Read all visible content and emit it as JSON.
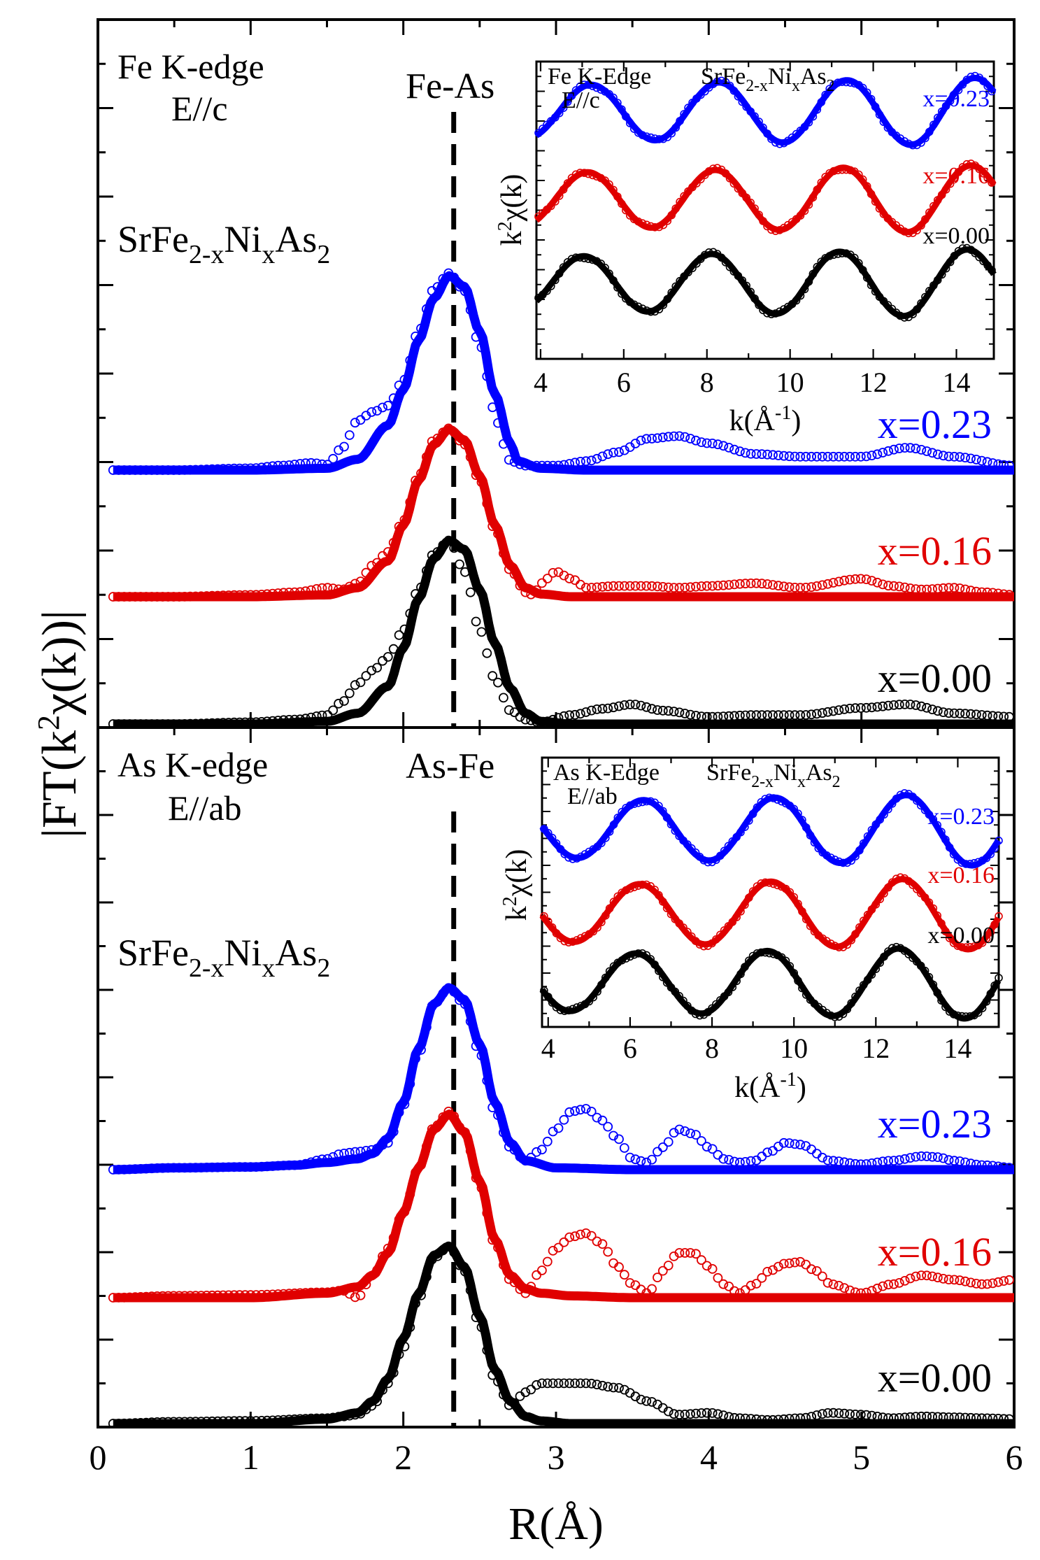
{
  "figure": {
    "ylabel": "|FT(k²χ(k))|",
    "ylabel_main": "|FT(k",
    "ylabel_sup": "2",
    "ylabel_rest": "χ(k))|",
    "xlabel": "R(Å)"
  },
  "colors": {
    "x023": "#0000ff",
    "x016": "#e00000",
    "x000": "#000000"
  },
  "chart_data": [
    {
      "id": "fe_main",
      "type": "line",
      "title_line1": "Fe K-edge",
      "title_line2": "E//c",
      "bond_label": "Fe-As",
      "bond_R": 2.33,
      "compound": "SrFe2-xNixAs2",
      "xlabel": "R(Å)",
      "ylabel": "|FT(k²χ(k))|",
      "xlim": [
        0,
        6
      ],
      "x_ticks": [
        0,
        1,
        2,
        3,
        4,
        5,
        6
      ],
      "series": [
        {
          "name": "x=0.23",
          "offset": 2.0,
          "fit": {
            "x": [
              0.1,
              1.0,
              1.5,
              1.7,
              1.9,
              2.0,
              2.1,
              2.2,
              2.3,
              2.4,
              2.5,
              2.6,
              2.7,
              2.75,
              2.9,
              3.2,
              4.0,
              5.0,
              6.0
            ],
            "y": [
              0.0,
              0.0,
              0.02,
              0.12,
              0.5,
              0.9,
              1.45,
              1.92,
              2.17,
              2.05,
              1.55,
              0.85,
              0.3,
              0.1,
              0.02,
              0.0,
              0.0,
              0.0,
              0.0
            ]
          },
          "data": {
            "x": [
              0.1,
              0.5,
              1.0,
              1.2,
              1.4,
              1.5,
              1.6,
              1.7,
              1.8,
              1.9,
              2.0,
              2.1,
              2.2,
              2.3,
              2.4,
              2.5,
              2.6,
              2.65,
              2.7,
              2.8,
              3.0,
              3.2,
              3.4,
              3.6,
              3.8,
              4.0,
              4.3,
              4.6,
              5.0,
              5.3,
              5.6,
              6.0
            ],
            "y": [
              0.0,
              0.0,
              0.02,
              0.05,
              0.08,
              0.06,
              0.25,
              0.55,
              0.65,
              0.72,
              1.0,
              1.55,
              2.02,
              2.2,
              2.0,
              1.4,
              0.65,
              0.3,
              0.1,
              0.05,
              0.05,
              0.1,
              0.2,
              0.35,
              0.38,
              0.3,
              0.18,
              0.15,
              0.15,
              0.25,
              0.15,
              0.05
            ]
          }
        },
        {
          "name": "x=0.16",
          "offset": 1.0,
          "fit": {
            "x": [
              0.1,
              1.0,
              1.5,
              1.7,
              1.9,
              2.0,
              2.1,
              2.2,
              2.3,
              2.4,
              2.5,
              2.6,
              2.7,
              2.8,
              2.9,
              3.1,
              4.0,
              5.0,
              6.0
            ],
            "y": [
              0.0,
              0.0,
              0.02,
              0.1,
              0.4,
              0.8,
              1.3,
              1.7,
              1.87,
              1.75,
              1.35,
              0.8,
              0.35,
              0.1,
              0.03,
              0.0,
              0.0,
              0.0,
              0.0
            ]
          },
          "data": {
            "x": [
              0.1,
              0.5,
              1.0,
              1.3,
              1.5,
              1.6,
              1.7,
              1.8,
              1.9,
              2.0,
              2.1,
              2.2,
              2.3,
              2.4,
              2.5,
              2.6,
              2.7,
              2.8,
              2.85,
              2.9,
              3.0,
              3.1,
              3.2,
              3.4,
              3.6,
              3.8,
              4.0,
              4.3,
              4.6,
              5.0,
              5.2,
              5.4,
              5.6,
              5.8,
              6.0
            ],
            "y": [
              0.0,
              0.0,
              0.02,
              0.05,
              0.1,
              0.08,
              0.15,
              0.35,
              0.5,
              0.85,
              1.35,
              1.75,
              1.88,
              1.7,
              1.3,
              0.75,
              0.3,
              0.05,
              0.02,
              0.15,
              0.28,
              0.2,
              0.1,
              0.12,
              0.12,
              0.1,
              0.12,
              0.15,
              0.1,
              0.2,
              0.12,
              0.08,
              0.1,
              0.05,
              0.02
            ]
          }
        },
        {
          "name": "x=0.00",
          "offset": 0.0,
          "fit": {
            "x": [
              0.1,
              1.0,
              1.5,
              1.7,
              1.9,
              2.0,
              2.1,
              2.2,
              2.3,
              2.4,
              2.5,
              2.6,
              2.7,
              2.8,
              2.9,
              3.1,
              4.0,
              5.0,
              6.0
            ],
            "y": [
              0.0,
              0.0,
              0.03,
              0.12,
              0.42,
              0.85,
              1.4,
              1.85,
              2.05,
              1.95,
              1.5,
              0.9,
              0.4,
              0.12,
              0.03,
              0.0,
              0.0,
              0.0,
              0.0
            ]
          },
          "data": {
            "x": [
              0.1,
              0.5,
              1.0,
              1.3,
              1.5,
              1.6,
              1.7,
              1.8,
              1.9,
              2.0,
              2.1,
              2.2,
              2.3,
              2.4,
              2.5,
              2.6,
              2.7,
              2.8,
              2.9,
              3.1,
              3.3,
              3.5,
              3.7,
              4.0,
              4.3,
              4.6,
              5.0,
              5.3,
              5.6,
              6.0
            ],
            "y": [
              0.0,
              0.0,
              0.02,
              0.05,
              0.1,
              0.25,
              0.45,
              0.6,
              0.75,
              1.05,
              1.5,
              1.9,
              2.05,
              1.7,
              1.05,
              0.5,
              0.15,
              0.05,
              0.02,
              0.1,
              0.17,
              0.22,
              0.15,
              0.08,
              0.1,
              0.1,
              0.18,
              0.22,
              0.12,
              0.08
            ]
          }
        }
      ]
    },
    {
      "id": "fe_inset",
      "type": "line",
      "title_line1": "Fe K-Edge",
      "title_line2": "E//c",
      "compound": "SrFe2-xNixAs2",
      "xlabel": "k(Å⁻¹)",
      "ylabel": "k²χ(k)",
      "xlim": [
        3.9,
        14.9
      ],
      "x_ticks": [
        4,
        6,
        8,
        10,
        12,
        14
      ],
      "wave": {
        "k": 4.3,
        "phase": 3.5
      },
      "series": [
        {
          "name": "x=0.23",
          "offset": 2.0
        },
        {
          "name": "x=0.16",
          "offset": 1.0
        },
        {
          "name": "x=0.00",
          "offset": 0.0
        }
      ]
    },
    {
      "id": "as_main",
      "type": "line",
      "title_line1": "As K-edge",
      "title_line2": "E//ab",
      "bond_label": "As-Fe",
      "bond_R": 2.33,
      "compound": "SrFe2-xNixAs2",
      "xlabel": "R(Å)",
      "ylabel": "|FT(k²χ(k))|",
      "xlim": [
        0,
        6
      ],
      "x_ticks": [
        0,
        1,
        2,
        3,
        4,
        5,
        6
      ],
      "series": [
        {
          "name": "x=0.23",
          "offset": 2.0,
          "fit": {
            "x": [
              0.1,
              0.5,
              1.0,
              1.3,
              1.5,
              1.7,
              1.8,
              1.9,
              2.0,
              2.1,
              2.2,
              2.3,
              2.4,
              2.5,
              2.6,
              2.7,
              2.8,
              3.0,
              3.5,
              6.0
            ],
            "y": [
              0.0,
              0.02,
              0.03,
              0.05,
              0.08,
              0.12,
              0.18,
              0.35,
              0.75,
              1.35,
              1.85,
              2.03,
              1.9,
              1.4,
              0.75,
              0.3,
              0.1,
              0.02,
              0.0,
              0.0
            ]
          },
          "data": {
            "x": [
              0.1,
              0.5,
              1.0,
              1.3,
              1.5,
              1.6,
              1.7,
              1.8,
              1.9,
              2.0,
              2.1,
              2.2,
              2.3,
              2.4,
              2.5,
              2.6,
              2.7,
              2.8,
              2.9,
              3.0,
              3.1,
              3.2,
              3.3,
              3.4,
              3.5,
              3.6,
              3.7,
              3.8,
              3.9,
              4.0,
              4.1,
              4.2,
              4.3,
              4.4,
              4.5,
              4.6,
              4.8,
              5.0,
              5.2,
              5.4,
              5.5,
              5.6,
              5.8,
              6.0
            ],
            "y": [
              0.0,
              0.02,
              0.03,
              0.05,
              0.12,
              0.18,
              0.2,
              0.22,
              0.3,
              0.72,
              1.3,
              1.85,
              2.03,
              1.85,
              1.3,
              0.65,
              0.25,
              0.1,
              0.22,
              0.45,
              0.65,
              0.68,
              0.55,
              0.35,
              0.12,
              0.08,
              0.25,
              0.45,
              0.4,
              0.25,
              0.12,
              0.08,
              0.1,
              0.2,
              0.3,
              0.28,
              0.1,
              0.06,
              0.1,
              0.15,
              0.14,
              0.1,
              0.05,
              0.02
            ]
          }
        },
        {
          "name": "x=0.16",
          "offset": 1.0,
          "fit": {
            "x": [
              0.1,
              1.0,
              1.5,
              1.7,
              1.8,
              1.9,
              2.0,
              2.1,
              2.2,
              2.3,
              2.4,
              2.5,
              2.6,
              2.7,
              2.8,
              2.9,
              3.1,
              3.5,
              6.0
            ],
            "y": [
              0.0,
              0.0,
              0.05,
              0.12,
              0.25,
              0.5,
              0.95,
              1.45,
              1.88,
              2.05,
              1.85,
              1.3,
              0.65,
              0.25,
              0.1,
              0.05,
              0.02,
              0.0,
              0.0
            ]
          },
          "data": {
            "x": [
              0.1,
              0.5,
              1.0,
              1.5,
              1.6,
              1.7,
              1.8,
              1.9,
              2.0,
              2.1,
              2.2,
              2.3,
              2.4,
              2.5,
              2.6,
              2.7,
              2.8,
              2.9,
              3.0,
              3.1,
              3.2,
              3.3,
              3.4,
              3.5,
              3.6,
              3.7,
              3.8,
              3.9,
              4.0,
              4.1,
              4.2,
              4.3,
              4.4,
              4.5,
              4.6,
              4.7,
              4.8,
              5.0,
              5.2,
              5.4,
              5.6,
              5.8,
              6.0
            ],
            "y": [
              0.0,
              0.02,
              0.03,
              0.06,
              0.08,
              0.0,
              0.25,
              0.55,
              0.95,
              1.45,
              1.9,
              2.08,
              1.85,
              1.25,
              0.6,
              0.2,
              0.05,
              0.3,
              0.55,
              0.68,
              0.72,
              0.6,
              0.35,
              0.15,
              0.05,
              0.3,
              0.5,
              0.5,
              0.35,
              0.15,
              0.05,
              0.15,
              0.3,
              0.38,
              0.4,
              0.3,
              0.15,
              0.05,
              0.15,
              0.25,
              0.2,
              0.15,
              0.2
            ]
          }
        },
        {
          "name": "x=0.00",
          "offset": 0.0,
          "fit": {
            "x": [
              0.1,
              1.0,
              1.5,
              1.7,
              1.8,
              1.9,
              2.0,
              2.1,
              2.2,
              2.3,
              2.4,
              2.5,
              2.6,
              2.7,
              2.8,
              2.9,
              3.1,
              3.5,
              6.0
            ],
            "y": [
              0.0,
              0.0,
              0.05,
              0.12,
              0.25,
              0.5,
              0.95,
              1.45,
              1.88,
              1.98,
              1.75,
              1.2,
              0.6,
              0.25,
              0.08,
              0.03,
              0.0,
              0.0,
              0.0
            ]
          },
          "data": {
            "x": [
              0.1,
              0.5,
              1.0,
              1.5,
              1.6,
              1.7,
              1.8,
              1.9,
              2.0,
              2.1,
              2.2,
              2.3,
              2.4,
              2.5,
              2.6,
              2.7,
              2.8,
              2.9,
              3.0,
              3.2,
              3.4,
              3.6,
              3.8,
              4.0,
              4.2,
              4.4,
              4.6,
              4.8,
              5.0,
              5.2,
              5.4,
              5.6,
              5.8,
              6.0
            ],
            "y": [
              0.0,
              0.02,
              0.03,
              0.06,
              0.08,
              0.1,
              0.2,
              0.45,
              0.85,
              1.4,
              1.85,
              1.98,
              1.7,
              1.1,
              0.5,
              0.2,
              0.35,
              0.45,
              0.45,
              0.45,
              0.4,
              0.25,
              0.1,
              0.12,
              0.06,
              0.04,
              0.06,
              0.12,
              0.1,
              0.06,
              0.08,
              0.07,
              0.06,
              0.05
            ]
          }
        }
      ]
    },
    {
      "id": "as_inset",
      "type": "line",
      "title_line1": "As K-Edge",
      "title_line2": "E//ab",
      "compound": "SrFe2-xNixAs2",
      "xlabel": "k(Å⁻¹)",
      "ylabel": "k²χ(k)",
      "xlim": [
        3.85,
        15
      ],
      "x_ticks": [
        4,
        6,
        8,
        10,
        12,
        14
      ],
      "wave": {
        "k": 4.12,
        "phase": 1.78
      },
      "series": [
        {
          "name": "x=0.23",
          "offset": 2.0
        },
        {
          "name": "x=0.16",
          "offset": 1.0
        },
        {
          "name": "x=0.00",
          "offset": 0.0
        }
      ]
    }
  ]
}
